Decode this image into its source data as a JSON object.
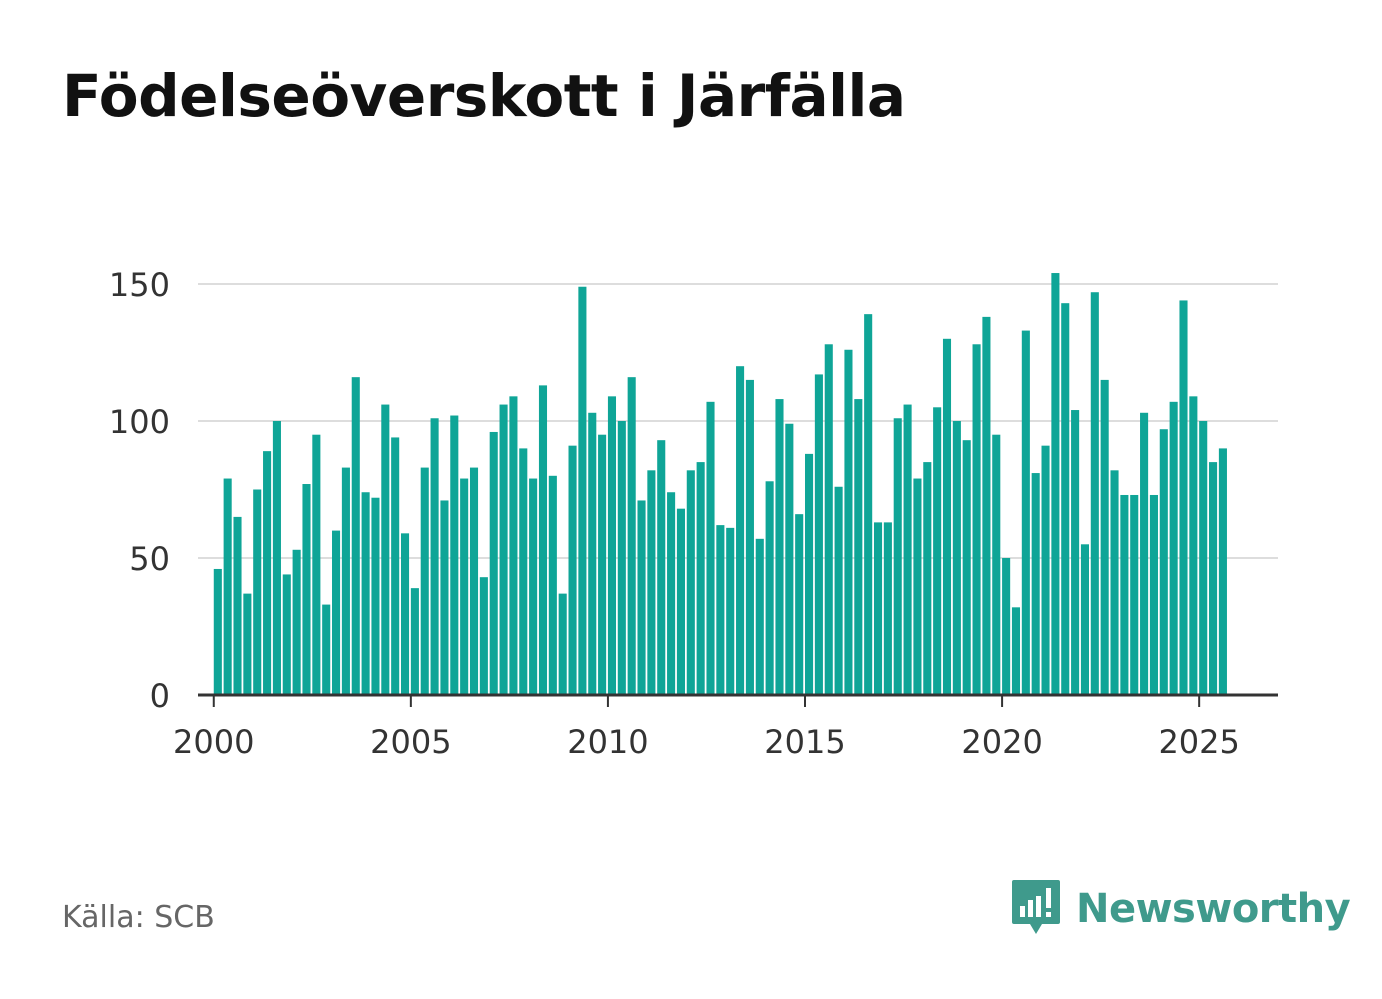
{
  "chart_data": {
    "type": "bar",
    "title": "Födelseöverskott i Järfälla",
    "xlabel": "",
    "ylabel": "",
    "ylim": [
      0,
      150
    ],
    "xlim": [
      1999.6,
      2027.0
    ],
    "y_ticks": [
      "0",
      "50",
      "100",
      "150"
    ],
    "x_ticks": [
      "2000",
      "2005",
      "2010",
      "2015",
      "2020",
      "2025"
    ],
    "grid": true,
    "bar_color": "#0fa597",
    "start_year": 2000,
    "periods_per_year": 4,
    "values": [
      46,
      79,
      65,
      37,
      75,
      89,
      100,
      44,
      53,
      77,
      95,
      33,
      60,
      83,
      116,
      74,
      72,
      106,
      94,
      59,
      39,
      83,
      101,
      71,
      102,
      79,
      83,
      43,
      96,
      106,
      109,
      90,
      79,
      113,
      80,
      37,
      91,
      149,
      103,
      95,
      109,
      100,
      116,
      71,
      82,
      93,
      74,
      68,
      82,
      85,
      107,
      62,
      61,
      120,
      115,
      57,
      78,
      108,
      99,
      66,
      88,
      117,
      128,
      76,
      126,
      108,
      139,
      63,
      63,
      101,
      106,
      79,
      85,
      105,
      130,
      100,
      93,
      128,
      138,
      95,
      50,
      32,
      133,
      81,
      91,
      154,
      143,
      104,
      55,
      147,
      115,
      82,
      73,
      73,
      103,
      73,
      97,
      107,
      144,
      109,
      100,
      85,
      90
    ]
  },
  "source": "Källa: SCB",
  "brand": {
    "name": "Newsworthy",
    "icon": "newsworthy-logo-icon",
    "color": "#3f9a8c"
  }
}
